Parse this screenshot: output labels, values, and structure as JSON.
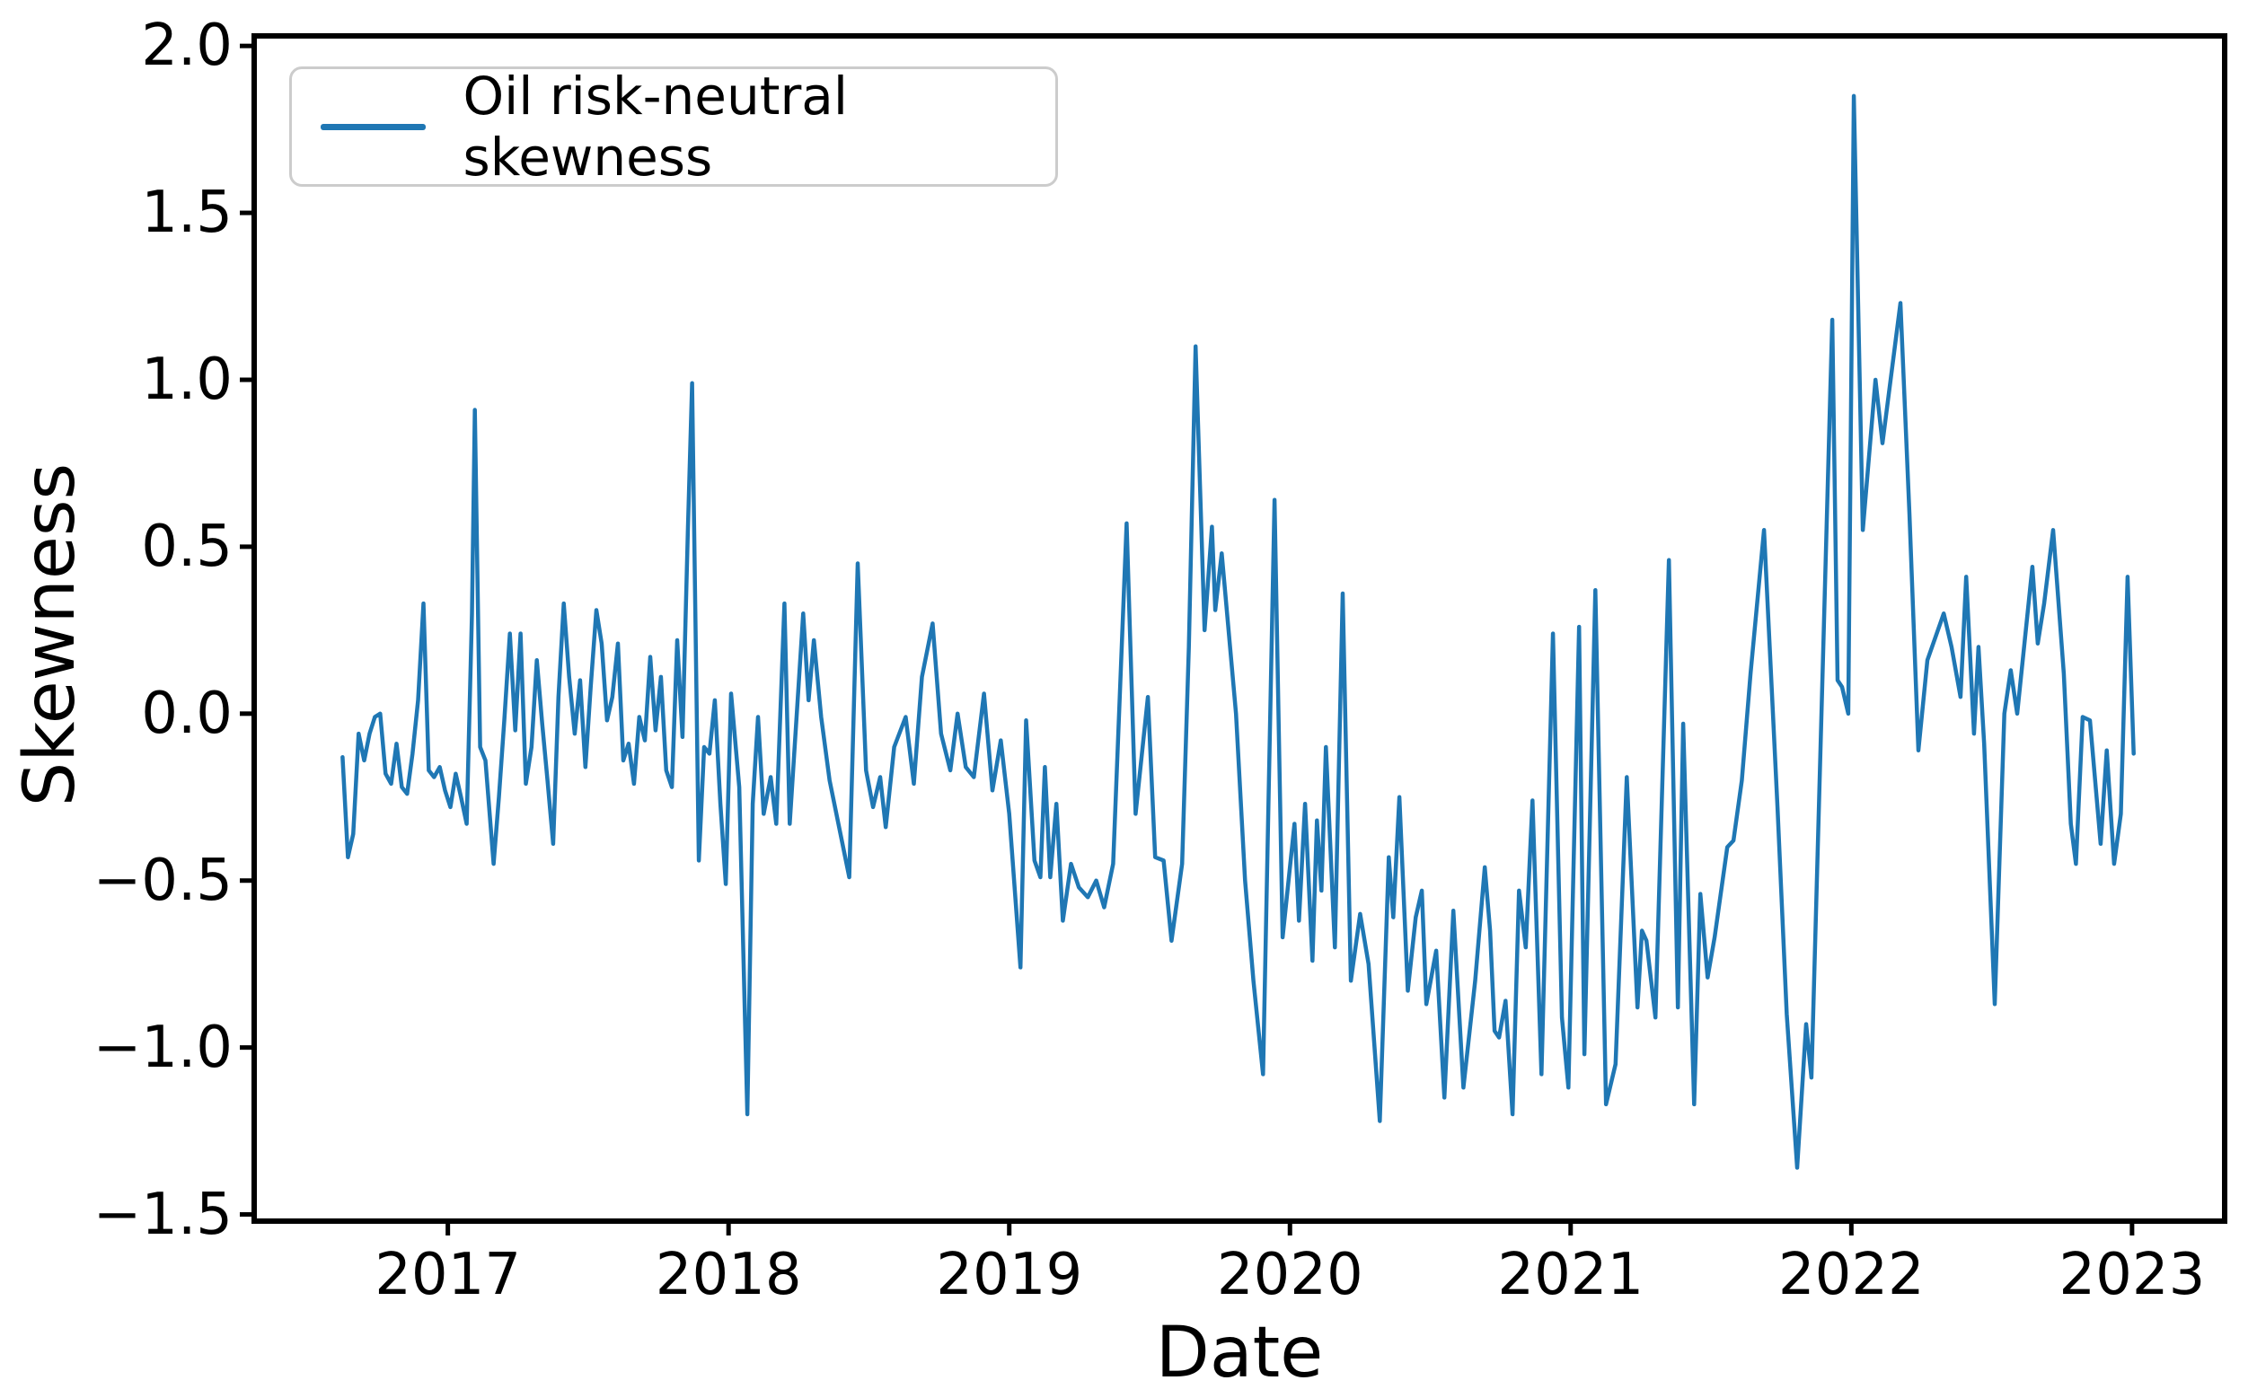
{
  "chart_data": {
    "type": "line",
    "title": "",
    "xlabel": "Date",
    "ylabel": "Skewness",
    "grid": false,
    "legend_position": "upper left",
    "line_color": "#1f77b4",
    "axis_color": "#000000",
    "xlim": [
      2016.31,
      2023.33
    ],
    "ylim": [
      -1.52,
      2.03
    ],
    "xticks": [
      2017,
      2018,
      2019,
      2020,
      2021,
      2022,
      2023
    ],
    "xtick_labels": [
      "2017",
      "2018",
      "2019",
      "2020",
      "2021",
      "2022",
      "2023"
    ],
    "yticks": [
      2.0,
      1.5,
      1.0,
      0.5,
      0.0,
      -0.5,
      -1.0,
      -1.5
    ],
    "ytick_labels": [
      "2.0",
      "1.5",
      "1.0",
      "0.5",
      "0.0",
      "−0.5",
      "−1.0",
      "−1.5"
    ],
    "series": [
      {
        "name": "Oil risk-neutral skewness",
        "points": [
          [
            2016.625,
            -0.13
          ],
          [
            2016.644,
            -0.43
          ],
          [
            2016.663,
            -0.36
          ],
          [
            2016.682,
            -0.06
          ],
          [
            2016.702,
            -0.14
          ],
          [
            2016.721,
            -0.06
          ],
          [
            2016.74,
            -0.01
          ],
          [
            2016.759,
            0.0
          ],
          [
            2016.778,
            -0.18
          ],
          [
            2016.798,
            -0.21
          ],
          [
            2016.817,
            -0.09
          ],
          [
            2016.836,
            -0.22
          ],
          [
            2016.855,
            -0.24
          ],
          [
            2016.874,
            -0.12
          ],
          [
            2016.894,
            0.04
          ],
          [
            2016.913,
            0.33
          ],
          [
            2016.932,
            -0.17
          ],
          [
            2016.951,
            -0.19
          ],
          [
            2016.971,
            -0.16
          ],
          [
            2016.99,
            -0.23
          ],
          [
            2017.009,
            -0.28
          ],
          [
            2017.028,
            -0.18
          ],
          [
            2017.047,
            -0.25
          ],
          [
            2017.067,
            -0.33
          ],
          [
            2017.086,
            0.3
          ],
          [
            2017.096,
            0.91
          ],
          [
            2017.115,
            -0.1
          ],
          [
            2017.134,
            -0.14
          ],
          [
            2017.163,
            -0.45
          ],
          [
            2017.182,
            -0.25
          ],
          [
            2017.201,
            -0.02
          ],
          [
            2017.221,
            0.24
          ],
          [
            2017.24,
            -0.05
          ],
          [
            2017.259,
            0.24
          ],
          [
            2017.278,
            -0.21
          ],
          [
            2017.298,
            -0.1
          ],
          [
            2017.317,
            0.16
          ],
          [
            2017.336,
            -0.03
          ],
          [
            2017.355,
            -0.2
          ],
          [
            2017.375,
            -0.39
          ],
          [
            2017.394,
            0.05
          ],
          [
            2017.413,
            0.33
          ],
          [
            2017.432,
            0.11
          ],
          [
            2017.452,
            -0.06
          ],
          [
            2017.471,
            0.1
          ],
          [
            2017.49,
            -0.16
          ],
          [
            2017.509,
            0.08
          ],
          [
            2017.529,
            0.31
          ],
          [
            2017.548,
            0.21
          ],
          [
            2017.567,
            -0.02
          ],
          [
            2017.586,
            0.05
          ],
          [
            2017.606,
            0.21
          ],
          [
            2017.625,
            -0.14
          ],
          [
            2017.644,
            -0.09
          ],
          [
            2017.663,
            -0.21
          ],
          [
            2017.682,
            -0.01
          ],
          [
            2017.702,
            -0.08
          ],
          [
            2017.721,
            0.17
          ],
          [
            2017.74,
            -0.05
          ],
          [
            2017.759,
            0.11
          ],
          [
            2017.778,
            -0.17
          ],
          [
            2017.798,
            -0.22
          ],
          [
            2017.817,
            0.22
          ],
          [
            2017.836,
            -0.07
          ],
          [
            2017.855,
            0.55
          ],
          [
            2017.87,
            0.99
          ],
          [
            2017.894,
            -0.44
          ],
          [
            2017.913,
            -0.1
          ],
          [
            2017.932,
            -0.12
          ],
          [
            2017.951,
            0.04
          ],
          [
            2017.971,
            -0.27
          ],
          [
            2017.99,
            -0.51
          ],
          [
            2018.009,
            0.06
          ],
          [
            2018.038,
            -0.22
          ],
          [
            2018.067,
            -1.2
          ],
          [
            2018.086,
            -0.27
          ],
          [
            2018.105,
            -0.01
          ],
          [
            2018.125,
            -0.3
          ],
          [
            2018.15,
            -0.19
          ],
          [
            2018.17,
            -0.33
          ],
          [
            2018.199,
            0.33
          ],
          [
            2018.218,
            -0.33
          ],
          [
            2018.266,
            0.3
          ],
          [
            2018.285,
            0.04
          ],
          [
            2018.304,
            0.22
          ],
          [
            2018.33,
            -0.01
          ],
          [
            2018.36,
            -0.2
          ],
          [
            2018.43,
            -0.49
          ],
          [
            2018.46,
            0.45
          ],
          [
            2018.49,
            -0.17
          ],
          [
            2018.515,
            -0.28
          ],
          [
            2018.54,
            -0.19
          ],
          [
            2018.56,
            -0.34
          ],
          [
            2018.59,
            -0.1
          ],
          [
            2018.631,
            -0.01
          ],
          [
            2018.66,
            -0.21
          ],
          [
            2018.689,
            0.11
          ],
          [
            2018.727,
            0.27
          ],
          [
            2018.757,
            -0.06
          ],
          [
            2018.79,
            -0.17
          ],
          [
            2018.816,
            0.0
          ],
          [
            2018.845,
            -0.16
          ],
          [
            2018.874,
            -0.19
          ],
          [
            2018.91,
            0.06
          ],
          [
            2018.94,
            -0.23
          ],
          [
            2018.97,
            -0.08
          ],
          [
            2019.0,
            -0.3
          ],
          [
            2019.04,
            -0.76
          ],
          [
            2019.06,
            -0.02
          ],
          [
            2019.09,
            -0.44
          ],
          [
            2019.111,
            -0.49
          ],
          [
            2019.127,
            -0.16
          ],
          [
            2019.146,
            -0.49
          ],
          [
            2019.168,
            -0.27
          ],
          [
            2019.191,
            -0.62
          ],
          [
            2019.22,
            -0.45
          ],
          [
            2019.248,
            -0.52
          ],
          [
            2019.28,
            -0.55
          ],
          [
            2019.31,
            -0.5
          ],
          [
            2019.338,
            -0.58
          ],
          [
            2019.37,
            -0.45
          ],
          [
            2019.418,
            0.57
          ],
          [
            2019.45,
            -0.3
          ],
          [
            2019.494,
            0.05
          ],
          [
            2019.52,
            -0.43
          ],
          [
            2019.55,
            -0.44
          ],
          [
            2019.578,
            -0.68
          ],
          [
            2019.616,
            -0.45
          ],
          [
            2019.64,
            0.2
          ],
          [
            2019.664,
            1.1
          ],
          [
            2019.696,
            0.25
          ],
          [
            2019.722,
            0.56
          ],
          [
            2019.734,
            0.31
          ],
          [
            2019.757,
            0.48
          ],
          [
            2019.808,
            0.0
          ],
          [
            2019.84,
            -0.5
          ],
          [
            2019.87,
            -0.8
          ],
          [
            2019.904,
            -1.08
          ],
          [
            2019.945,
            0.64
          ],
          [
            2019.974,
            -0.67
          ],
          [
            2020.016,
            -0.33
          ],
          [
            2020.032,
            -0.62
          ],
          [
            2020.054,
            -0.27
          ],
          [
            2020.08,
            -0.74
          ],
          [
            2020.096,
            -0.32
          ],
          [
            2020.112,
            -0.53
          ],
          [
            2020.128,
            -0.1
          ],
          [
            2020.16,
            -0.7
          ],
          [
            2020.188,
            0.36
          ],
          [
            2020.217,
            -0.8
          ],
          [
            2020.25,
            -0.6
          ],
          [
            2020.28,
            -0.75
          ],
          [
            2020.32,
            -1.22
          ],
          [
            2020.352,
            -0.43
          ],
          [
            2020.368,
            -0.61
          ],
          [
            2020.39,
            -0.25
          ],
          [
            2020.42,
            -0.83
          ],
          [
            2020.448,
            -0.61
          ],
          [
            2020.47,
            -0.53
          ],
          [
            2020.486,
            -0.87
          ],
          [
            2020.521,
            -0.71
          ],
          [
            2020.55,
            -1.15
          ],
          [
            2020.582,
            -0.59
          ],
          [
            2020.618,
            -1.12
          ],
          [
            2020.66,
            -0.8
          ],
          [
            2020.694,
            -0.46
          ],
          [
            2020.713,
            -0.65
          ],
          [
            2020.729,
            -0.95
          ],
          [
            2020.745,
            -0.97
          ],
          [
            2020.768,
            -0.86
          ],
          [
            2020.793,
            -1.2
          ],
          [
            2020.816,
            -0.53
          ],
          [
            2020.84,
            -0.7
          ],
          [
            2020.864,
            -0.26
          ],
          [
            2020.896,
            -1.08
          ],
          [
            2020.937,
            0.24
          ],
          [
            2020.969,
            -0.91
          ],
          [
            2020.992,
            -1.12
          ],
          [
            2021.03,
            0.26
          ],
          [
            2021.049,
            -1.02
          ],
          [
            2021.088,
            0.37
          ],
          [
            2021.126,
            -1.17
          ],
          [
            2021.16,
            -1.05
          ],
          [
            2021.2,
            -0.19
          ],
          [
            2021.238,
            -0.88
          ],
          [
            2021.254,
            -0.65
          ],
          [
            2021.27,
            -0.68
          ],
          [
            2021.302,
            -0.91
          ],
          [
            2021.35,
            0.46
          ],
          [
            2021.382,
            -0.88
          ],
          [
            2021.401,
            -0.03
          ],
          [
            2021.44,
            -1.17
          ],
          [
            2021.462,
            -0.54
          ],
          [
            2021.488,
            -0.79
          ],
          [
            2021.513,
            -0.67
          ],
          [
            2021.558,
            -0.4
          ],
          [
            2021.58,
            -0.38
          ],
          [
            2021.61,
            -0.2
          ],
          [
            2021.641,
            0.12
          ],
          [
            2021.689,
            0.55
          ],
          [
            2021.737,
            -0.28
          ],
          [
            2021.77,
            -0.9
          ],
          [
            2021.807,
            -1.36
          ],
          [
            2021.839,
            -0.93
          ],
          [
            2021.858,
            -1.09
          ],
          [
            2021.897,
            0.1
          ],
          [
            2021.932,
            1.18
          ],
          [
            2021.951,
            0.1
          ],
          [
            2021.967,
            0.08
          ],
          [
            2021.989,
            0.0
          ],
          [
            2022.009,
            1.85
          ],
          [
            2022.041,
            0.55
          ],
          [
            2022.086,
            1.0
          ],
          [
            2022.111,
            0.81
          ],
          [
            2022.175,
            1.23
          ],
          [
            2022.207,
            0.6
          ],
          [
            2022.239,
            -0.11
          ],
          [
            2022.271,
            0.16
          ],
          [
            2022.329,
            0.3
          ],
          [
            2022.357,
            0.2
          ],
          [
            2022.389,
            0.05
          ],
          [
            2022.409,
            0.41
          ],
          [
            2022.437,
            -0.06
          ],
          [
            2022.453,
            0.2
          ],
          [
            2022.473,
            -0.09
          ],
          [
            2022.511,
            -0.87
          ],
          [
            2022.545,
            0.0
          ],
          [
            2022.568,
            0.13
          ],
          [
            2022.591,
            0.0
          ],
          [
            2022.645,
            0.44
          ],
          [
            2022.664,
            0.21
          ],
          [
            2022.687,
            0.33
          ],
          [
            2022.719,
            0.55
          ],
          [
            2022.757,
            0.12
          ],
          [
            2022.782,
            -0.33
          ],
          [
            2022.8,
            -0.45
          ],
          [
            2022.824,
            -0.01
          ],
          [
            2022.85,
            -0.02
          ],
          [
            2022.888,
            -0.39
          ],
          [
            2022.91,
            -0.11
          ],
          [
            2022.936,
            -0.45
          ],
          [
            2022.96,
            -0.3
          ],
          [
            2022.984,
            0.41
          ],
          [
            2023.006,
            -0.12
          ]
        ]
      }
    ]
  }
}
